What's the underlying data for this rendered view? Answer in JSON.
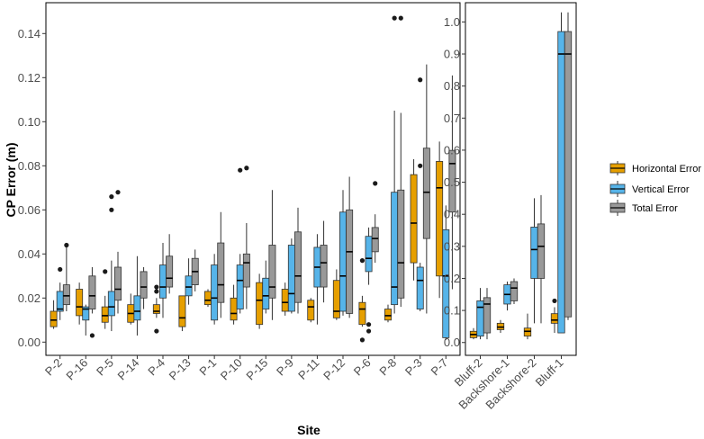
{
  "chart_data": [
    {
      "type": "box",
      "panel": "left",
      "ylabel": "CP Error (m)",
      "xlabel": "Site",
      "ylim": [
        -0.006,
        0.154
      ],
      "yticks": [
        0.0,
        0.02,
        0.04,
        0.06,
        0.08,
        0.1,
        0.12,
        0.14
      ],
      "ytick_labels": [
        "0.00",
        "0.02",
        "0.04",
        "0.06",
        "0.08",
        "0.10",
        "0.12",
        "0.14"
      ],
      "categories": [
        "P-2",
        "P-16",
        "P-5",
        "P-14",
        "P-4",
        "P-13",
        "P-1",
        "P-10",
        "P-15",
        "P-9",
        "P-11",
        "P-12",
        "P-6",
        "P-8",
        "P-3",
        "P-7"
      ],
      "series": [
        {
          "name": "Horizontal Error",
          "boxes": [
            {
              "lo": 0.006,
              "q1": 0.007,
              "med": 0.01,
              "q3": 0.014,
              "hi": 0.019,
              "outliers": []
            },
            {
              "lo": 0.008,
              "q1": 0.012,
              "med": 0.016,
              "q3": 0.024,
              "hi": 0.027,
              "outliers": []
            },
            {
              "lo": 0.006,
              "q1": 0.009,
              "med": 0.012,
              "q3": 0.016,
              "hi": 0.021,
              "outliers": [
                0.032
              ]
            },
            {
              "lo": 0.008,
              "q1": 0.009,
              "med": 0.013,
              "q3": 0.017,
              "hi": 0.022,
              "outliers": []
            },
            {
              "lo": 0.011,
              "q1": 0.013,
              "med": 0.014,
              "q3": 0.017,
              "hi": 0.02,
              "outliers": [
                0.005,
                0.023,
                0.025
              ]
            },
            {
              "lo": 0.005,
              "q1": 0.007,
              "med": 0.011,
              "q3": 0.021,
              "hi": 0.021,
              "outliers": []
            },
            {
              "lo": 0.016,
              "q1": 0.017,
              "med": 0.019,
              "q3": 0.023,
              "hi": 0.024,
              "outliers": []
            },
            {
              "lo": 0.008,
              "q1": 0.01,
              "med": 0.013,
              "q3": 0.02,
              "hi": 0.026,
              "outliers": []
            },
            {
              "lo": 0.006,
              "q1": 0.008,
              "med": 0.019,
              "q3": 0.027,
              "hi": 0.031,
              "outliers": []
            },
            {
              "lo": 0.012,
              "q1": 0.014,
              "med": 0.018,
              "q3": 0.024,
              "hi": 0.027,
              "outliers": []
            },
            {
              "lo": 0.009,
              "q1": 0.01,
              "med": 0.016,
              "q3": 0.019,
              "hi": 0.02,
              "outliers": []
            },
            {
              "lo": 0.01,
              "q1": 0.011,
              "med": 0.014,
              "q3": 0.028,
              "hi": 0.033,
              "outliers": []
            },
            {
              "lo": 0.007,
              "q1": 0.008,
              "med": 0.015,
              "q3": 0.018,
              "hi": 0.021,
              "outliers": [
                0.037,
                0.001
              ]
            },
            {
              "lo": 0.009,
              "q1": 0.01,
              "med": 0.012,
              "q3": 0.015,
              "hi": 0.017,
              "outliers": []
            },
            {
              "lo": 0.028,
              "q1": 0.036,
              "med": 0.054,
              "q3": 0.076,
              "hi": 0.083,
              "outliers": []
            },
            {
              "lo": 0.02,
              "q1": 0.03,
              "med": 0.07,
              "q3": 0.082,
              "hi": 0.091,
              "outliers": []
            }
          ]
        },
        {
          "name": "Vertical Error",
          "boxes": [
            {
              "lo": 0.01,
              "q1": 0.014,
              "med": 0.015,
              "q3": 0.023,
              "hi": 0.027,
              "outliers": [
                0.033
              ]
            },
            {
              "lo": 0.003,
              "q1": 0.01,
              "med": 0.015,
              "q3": 0.016,
              "hi": 0.017,
              "outliers": []
            },
            {
              "lo": 0.005,
              "q1": 0.012,
              "med": 0.016,
              "q3": 0.023,
              "hi": 0.037,
              "outliers": [
                0.06,
                0.066
              ]
            },
            {
              "lo": 0.003,
              "q1": 0.01,
              "med": 0.014,
              "q3": 0.021,
              "hi": 0.039,
              "outliers": []
            },
            {
              "lo": 0.011,
              "q1": 0.02,
              "med": 0.025,
              "q3": 0.035,
              "hi": 0.045,
              "outliers": []
            },
            {
              "lo": 0.017,
              "q1": 0.021,
              "med": 0.025,
              "q3": 0.03,
              "hi": 0.038,
              "outliers": []
            },
            {
              "lo": 0.008,
              "q1": 0.01,
              "med": 0.02,
              "q3": 0.035,
              "hi": 0.04,
              "outliers": []
            },
            {
              "lo": 0.013,
              "q1": 0.015,
              "med": 0.028,
              "q3": 0.035,
              "hi": 0.04,
              "outliers": [
                0.078
              ]
            },
            {
              "lo": 0.013,
              "q1": 0.015,
              "med": 0.021,
              "q3": 0.029,
              "hi": 0.037,
              "outliers": []
            },
            {
              "lo": 0.013,
              "q1": 0.014,
              "med": 0.022,
              "q3": 0.044,
              "hi": 0.047,
              "outliers": []
            },
            {
              "lo": 0.008,
              "q1": 0.025,
              "med": 0.034,
              "q3": 0.043,
              "hi": 0.049,
              "outliers": []
            },
            {
              "lo": 0.012,
              "q1": 0.014,
              "med": 0.03,
              "q3": 0.059,
              "hi": 0.069,
              "outliers": []
            },
            {
              "lo": 0.026,
              "q1": 0.032,
              "med": 0.038,
              "q3": 0.048,
              "hi": 0.052,
              "outliers": [
                0.008,
                0.005
              ]
            },
            {
              "lo": 0.013,
              "q1": 0.017,
              "med": 0.025,
              "q3": 0.068,
              "hi": 0.105,
              "outliers": [
                0.147
              ]
            },
            {
              "lo": 0.014,
              "q1": 0.015,
              "med": 0.028,
              "q3": 0.034,
              "hi": 0.036,
              "outliers": [
                0.119,
                0.08
              ]
            },
            {
              "lo": 0.001,
              "q1": 0.002,
              "med": 0.03,
              "q3": 0.051,
              "hi": 0.062,
              "outliers": []
            }
          ]
        },
        {
          "name": "Total Error",
          "boxes": [
            {
              "lo": 0.014,
              "q1": 0.017,
              "med": 0.021,
              "q3": 0.026,
              "hi": 0.044,
              "outliers": [
                0.044
              ]
            },
            {
              "lo": 0.013,
              "q1": 0.015,
              "med": 0.021,
              "q3": 0.03,
              "hi": 0.034,
              "outliers": [
                0.003
              ]
            },
            {
              "lo": 0.013,
              "q1": 0.019,
              "med": 0.024,
              "q3": 0.034,
              "hi": 0.041,
              "outliers": [
                0.068
              ]
            },
            {
              "lo": 0.015,
              "q1": 0.02,
              "med": 0.025,
              "q3": 0.032,
              "hi": 0.034,
              "outliers": []
            },
            {
              "lo": 0.022,
              "q1": 0.025,
              "med": 0.029,
              "q3": 0.039,
              "hi": 0.049,
              "outliers": []
            },
            {
              "lo": 0.023,
              "q1": 0.026,
              "med": 0.032,
              "q3": 0.038,
              "hi": 0.042,
              "outliers": []
            },
            {
              "lo": 0.011,
              "q1": 0.018,
              "med": 0.026,
              "q3": 0.045,
              "hi": 0.059,
              "outliers": []
            },
            {
              "lo": 0.015,
              "q1": 0.025,
              "med": 0.036,
              "q3": 0.04,
              "hi": 0.054,
              "outliers": [
                0.079
              ]
            },
            {
              "lo": 0.01,
              "q1": 0.02,
              "med": 0.025,
              "q3": 0.044,
              "hi": 0.069,
              "outliers": []
            },
            {
              "lo": 0.013,
              "q1": 0.018,
              "med": 0.03,
              "q3": 0.05,
              "hi": 0.061,
              "outliers": []
            },
            {
              "lo": 0.018,
              "q1": 0.025,
              "med": 0.036,
              "q3": 0.044,
              "hi": 0.055,
              "outliers": []
            },
            {
              "lo": 0.011,
              "q1": 0.013,
              "med": 0.041,
              "q3": 0.06,
              "hi": 0.075,
              "outliers": []
            },
            {
              "lo": 0.036,
              "q1": 0.041,
              "med": 0.047,
              "q3": 0.052,
              "hi": 0.058,
              "outliers": [
                0.072
              ]
            },
            {
              "lo": 0.016,
              "q1": 0.02,
              "med": 0.036,
              "q3": 0.069,
              "hi": 0.104,
              "outliers": [
                0.147
              ]
            },
            {
              "lo": 0.013,
              "q1": 0.047,
              "med": 0.068,
              "q3": 0.088,
              "hi": 0.126,
              "outliers": []
            },
            {
              "lo": 0.024,
              "q1": 0.059,
              "med": 0.081,
              "q3": 0.087,
              "hi": 0.121,
              "outliers": []
            }
          ]
        }
      ]
    },
    {
      "type": "box",
      "panel": "right",
      "ylim": [
        -0.04,
        1.06
      ],
      "yticks": [
        0.0,
        0.1,
        0.2,
        0.3,
        0.4,
        0.5,
        0.6,
        0.7,
        0.8,
        0.9,
        1.0
      ],
      "ytick_labels": [
        "0.0",
        "0.1",
        "0.2",
        "0.3",
        "0.4",
        "0.5",
        "0.6",
        "0.7",
        "0.8",
        "0.9",
        "1.0"
      ],
      "categories": [
        "Bluff-2",
        "Backshore-1",
        "Backshore-2",
        "Bluff-1"
      ],
      "series": [
        {
          "name": "Horizontal Error",
          "boxes": [
            {
              "lo": 0.01,
              "q1": 0.015,
              "med": 0.025,
              "q3": 0.035,
              "hi": 0.045,
              "outliers": []
            },
            {
              "lo": 0.03,
              "q1": 0.04,
              "med": 0.048,
              "q3": 0.06,
              "hi": 0.07,
              "outliers": []
            },
            {
              "lo": 0.01,
              "q1": 0.02,
              "med": 0.035,
              "q3": 0.045,
              "hi": 0.09,
              "outliers": []
            },
            {
              "lo": 0.03,
              "q1": 0.06,
              "med": 0.07,
              "q3": 0.09,
              "hi": 0.11,
              "outliers": [
                0.13
              ]
            }
          ]
        },
        {
          "name": "Vertical Error",
          "boxes": [
            {
              "lo": 0.01,
              "q1": 0.02,
              "med": 0.11,
              "q3": 0.13,
              "hi": 0.17,
              "outliers": []
            },
            {
              "lo": 0.1,
              "q1": 0.12,
              "med": 0.15,
              "q3": 0.18,
              "hi": 0.19,
              "outliers": []
            },
            {
              "lo": 0.06,
              "q1": 0.2,
              "med": 0.29,
              "q3": 0.36,
              "hi": 0.45,
              "outliers": []
            },
            {
              "lo": 0.03,
              "q1": 0.03,
              "med": 0.9,
              "q3": 0.97,
              "hi": 1.03,
              "outliers": []
            }
          ]
        },
        {
          "name": "Total Error",
          "boxes": [
            {
              "lo": 0.01,
              "q1": 0.03,
              "med": 0.12,
              "q3": 0.14,
              "hi": 0.17,
              "outliers": []
            },
            {
              "lo": 0.12,
              "q1": 0.13,
              "med": 0.17,
              "q3": 0.19,
              "hi": 0.2,
              "outliers": []
            },
            {
              "lo": 0.06,
              "q1": 0.2,
              "med": 0.3,
              "q3": 0.37,
              "hi": 0.46,
              "outliers": []
            },
            {
              "lo": 0.07,
              "q1": 0.08,
              "med": 0.9,
              "q3": 0.97,
              "hi": 1.03,
              "outliers": []
            }
          ]
        }
      ]
    }
  ],
  "legend": [
    {
      "label": "Horizontal Error",
      "color": "#E69F00"
    },
    {
      "label": "Vertical Error",
      "color": "#56B4E9"
    },
    {
      "label": "Total Error",
      "color": "#999999"
    }
  ]
}
